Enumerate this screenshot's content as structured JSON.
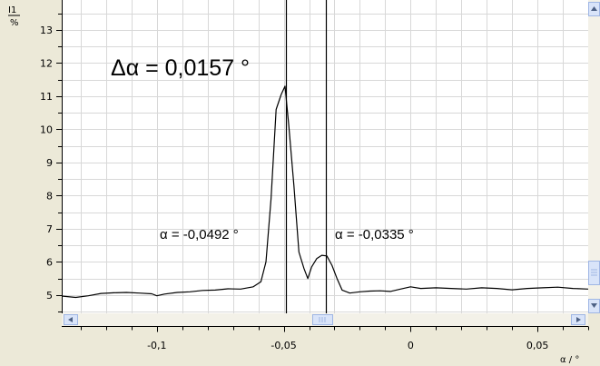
{
  "chart_data": {
    "type": "line",
    "ylabel_top": "I1",
    "ylabel_unit": "%",
    "xlabel": "α / °",
    "xlim": [
      -0.1375,
      0.07
    ],
    "ylim": [
      4.45,
      13.9
    ],
    "y_ticks": [
      5,
      6,
      7,
      8,
      9,
      10,
      11,
      12,
      13
    ],
    "x_ticks": [
      -0.1,
      -0.05,
      0,
      0.05
    ],
    "x_tick_labels": [
      "-0,1",
      "-0,05",
      "0",
      "0,05"
    ],
    "grid": true,
    "series": [
      {
        "color": "#000000",
        "x": [
          -0.1375,
          -0.132,
          -0.127,
          -0.122,
          -0.117,
          -0.112,
          -0.107,
          -0.102,
          -0.1,
          -0.097,
          -0.092,
          -0.087,
          -0.082,
          -0.077,
          -0.072,
          -0.067,
          -0.062,
          -0.059,
          -0.057,
          -0.055,
          -0.053,
          -0.051,
          -0.0495,
          -0.048,
          -0.046,
          -0.044,
          -0.042,
          -0.0405,
          -0.039,
          -0.037,
          -0.035,
          -0.033,
          -0.031,
          -0.029,
          -0.027,
          -0.024,
          -0.02,
          -0.016,
          -0.012,
          -0.008,
          -0.004,
          0.0,
          0.004,
          0.01,
          0.016,
          0.022,
          0.028,
          0.034,
          0.04,
          0.046,
          0.052,
          0.058,
          0.064,
          0.07
        ],
        "y": [
          4.97,
          4.93,
          4.98,
          5.05,
          5.07,
          5.08,
          5.06,
          5.04,
          4.98,
          5.03,
          5.08,
          5.1,
          5.14,
          5.15,
          5.19,
          5.18,
          5.25,
          5.4,
          6.0,
          7.9,
          10.6,
          11.05,
          11.3,
          10.1,
          8.3,
          6.3,
          5.8,
          5.5,
          5.85,
          6.1,
          6.2,
          6.18,
          5.9,
          5.5,
          5.15,
          5.06,
          5.1,
          5.12,
          5.13,
          5.11,
          5.18,
          5.25,
          5.2,
          5.22,
          5.2,
          5.18,
          5.22,
          5.2,
          5.16,
          5.2,
          5.22,
          5.24,
          5.2,
          5.18
        ]
      }
    ],
    "markers": [
      -0.0492,
      -0.0335
    ],
    "annotations": {
      "delta": "Δα = 0,0157 °",
      "left": "α = -0,0492 °",
      "right": "α = -0,0335 °"
    }
  }
}
